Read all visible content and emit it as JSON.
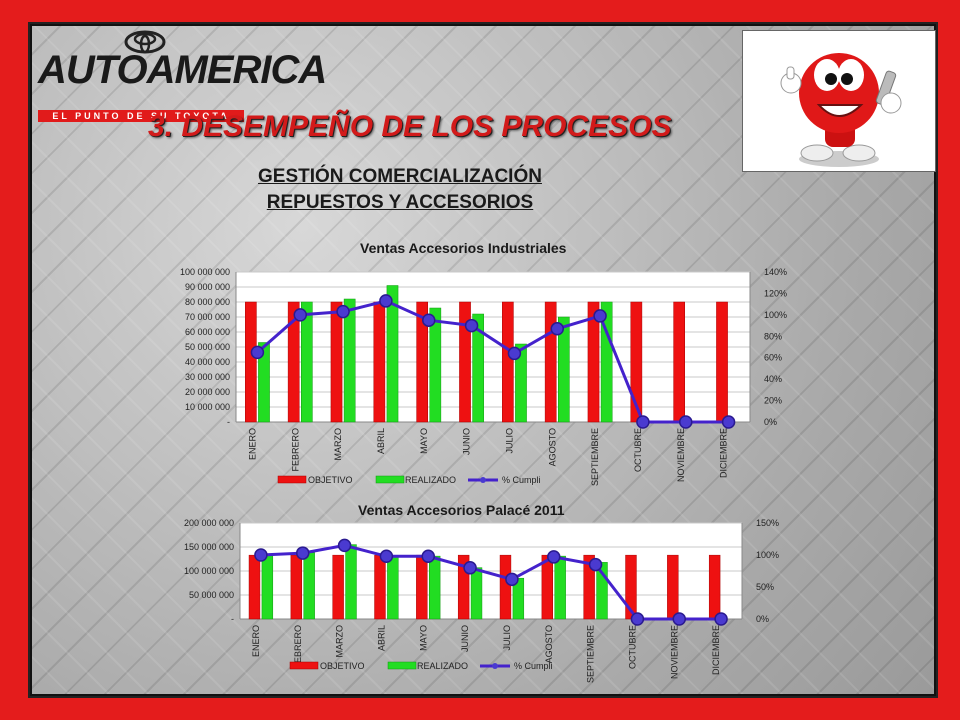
{
  "header": {
    "logo_text": "AUTOAMERICA",
    "logo_tagline": "EL PUNTO DE SU TOYOTA",
    "title": "3. DESEMPEÑO DE LOS PROCESOS",
    "subtitle_line1": "GESTIÓN COMERCIALIZACIÓN",
    "subtitle_line2": "REPUESTOS Y ACCESORIOS"
  },
  "colors": {
    "frame": "#e41c1c",
    "objetivo": "#ee1111",
    "realizado": "#22dd22",
    "cumpli": "#4422cc"
  },
  "chart_data": [
    {
      "type": "bar",
      "title": "Ventas Accesorios Industriales",
      "categories": [
        "ENERO",
        "FEBRERO",
        "MARZO",
        "ABRIL",
        "MAYO",
        "JUNIO",
        "JULIO",
        "AGOSTO",
        "SEPTIEMBRE",
        "OCTUBRE",
        "NOVIEMBRE",
        "DICIEMBRE"
      ],
      "y_ticks": [
        "-",
        "10 000 000",
        "20 000 000",
        "30 000 000",
        "40 000 000",
        "50 000 000",
        "60 000 000",
        "70 000 000",
        "80 000 000",
        "90 000 000",
        "100 000 000"
      ],
      "y2_ticks": [
        "0%",
        "20%",
        "40%",
        "60%",
        "80%",
        "100%",
        "120%",
        "140%"
      ],
      "ylim": [
        0,
        100000000
      ],
      "y2lim": [
        0,
        140
      ],
      "series": [
        {
          "name": "OBJETIVO",
          "kind": "bar",
          "values": [
            80000000,
            80000000,
            80000000,
            80000000,
            80000000,
            80000000,
            80000000,
            80000000,
            80000000,
            80000000,
            80000000,
            80000000
          ]
        },
        {
          "name": "REALIZADO",
          "kind": "bar",
          "values": [
            53000000,
            80000000,
            82000000,
            91000000,
            76000000,
            72000000,
            52000000,
            70000000,
            80000000,
            0,
            0,
            0
          ]
        },
        {
          "name": "% Cumpli",
          "kind": "line",
          "axis": "y2",
          "values": [
            65,
            100,
            103,
            113,
            95,
            90,
            64,
            87,
            99,
            0,
            0,
            0
          ]
        }
      ],
      "legend": "bottom"
    },
    {
      "type": "bar",
      "title": "Ventas Accesorios Palacé 2011",
      "categories": [
        "ENERO",
        "FEBRERO",
        "MARZO",
        "ABRIL",
        "MAYO",
        "JUNIO",
        "JULIO",
        "AGOSTO",
        "SEPTIEMBRE",
        "OCTUBRE",
        "NOVIEMBRE",
        "DICIEMBRE"
      ],
      "y_ticks": [
        "-",
        "50 000 000",
        "100 000 000",
        "150 000 000",
        "200 000 000"
      ],
      "y2_ticks": [
        "0%",
        "50%",
        "100%",
        "150%"
      ],
      "ylim": [
        0,
        200000000
      ],
      "y2lim": [
        0,
        150
      ],
      "series": [
        {
          "name": "OBJETIVO",
          "kind": "bar",
          "values": [
            133000000,
            133000000,
            133000000,
            133000000,
            133000000,
            133000000,
            133000000,
            133000000,
            133000000,
            133000000,
            133000000,
            133000000
          ]
        },
        {
          "name": "REALIZADO",
          "kind": "bar",
          "values": [
            133000000,
            138000000,
            155000000,
            130000000,
            131000000,
            107000000,
            85000000,
            131000000,
            118000000,
            0,
            0,
            0
          ]
        },
        {
          "name": "% Cumpli",
          "kind": "line",
          "axis": "y2",
          "values": [
            100,
            103,
            115,
            98,
            98,
            80,
            62,
            97,
            85,
            0,
            0,
            0
          ]
        }
      ],
      "legend": "bottom"
    }
  ]
}
